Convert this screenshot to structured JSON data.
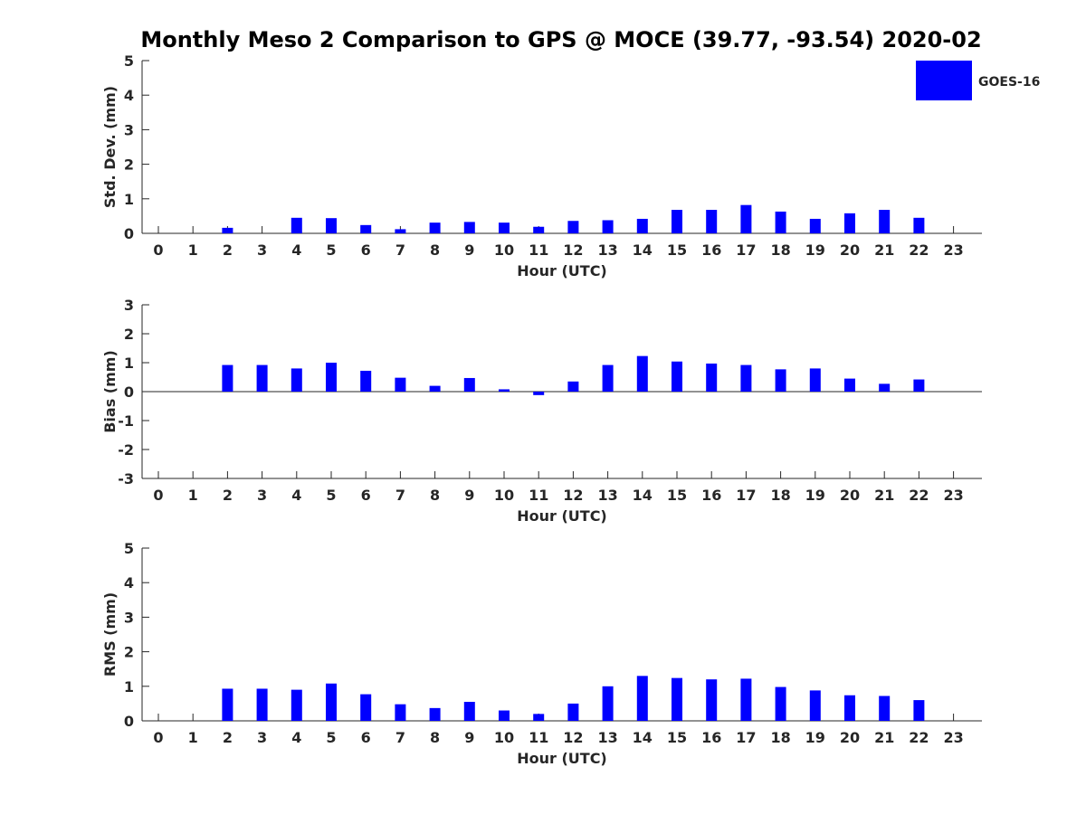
{
  "title": "Monthly Meso 2 Comparison to GPS @ MOCE (39.77, -93.54) 2020-02",
  "legend": {
    "label": "GOES-16",
    "color": "#0000ff"
  },
  "chart_data": [
    {
      "type": "bar",
      "name": "std",
      "ylabel": "Std. Dev. (mm)",
      "xlabel": "Hour (UTC)",
      "ylim": [
        0,
        5
      ],
      "yticks": [
        0,
        1,
        2,
        3,
        4,
        5
      ],
      "categories": [
        "0",
        "1",
        "2",
        "3",
        "4",
        "5",
        "6",
        "7",
        "8",
        "9",
        "10",
        "11",
        "12",
        "13",
        "14",
        "15",
        "16",
        "17",
        "18",
        "19",
        "20",
        "21",
        "22",
        "23"
      ],
      "values": [
        null,
        null,
        0.16,
        null,
        0.45,
        0.44,
        0.24,
        0.12,
        0.31,
        0.33,
        0.31,
        0.19,
        0.36,
        0.38,
        0.42,
        0.68,
        0.68,
        0.82,
        0.63,
        0.42,
        0.58,
        0.68,
        0.45,
        null
      ],
      "color": "#0000ff"
    },
    {
      "type": "bar",
      "name": "bias",
      "ylabel": "Bias (mm)",
      "xlabel": "Hour (UTC)",
      "ylim": [
        -3,
        3
      ],
      "yticks": [
        -3,
        -2,
        -1,
        0,
        1,
        2,
        3
      ],
      "categories": [
        "0",
        "1",
        "2",
        "3",
        "4",
        "5",
        "6",
        "7",
        "8",
        "9",
        "10",
        "11",
        "12",
        "13",
        "14",
        "15",
        "16",
        "17",
        "18",
        "19",
        "20",
        "21",
        "22",
        "23"
      ],
      "values": [
        null,
        null,
        0.92,
        0.92,
        0.8,
        1.0,
        0.72,
        0.48,
        0.2,
        0.47,
        0.08,
        -0.12,
        0.35,
        0.92,
        1.23,
        1.04,
        0.97,
        0.92,
        0.77,
        0.8,
        0.45,
        0.27,
        0.42,
        null
      ],
      "color": "#0000ff"
    },
    {
      "type": "bar",
      "name": "rms",
      "ylabel": "RMS (mm)",
      "xlabel": "Hour (UTC)",
      "ylim": [
        0,
        5
      ],
      "yticks": [
        0,
        1,
        2,
        3,
        4,
        5
      ],
      "categories": [
        "0",
        "1",
        "2",
        "3",
        "4",
        "5",
        "6",
        "7",
        "8",
        "9",
        "10",
        "11",
        "12",
        "13",
        "14",
        "15",
        "16",
        "17",
        "18",
        "19",
        "20",
        "21",
        "22",
        "23"
      ],
      "values": [
        null,
        null,
        0.93,
        0.93,
        0.9,
        1.08,
        0.77,
        0.48,
        0.37,
        0.55,
        0.3,
        0.2,
        0.5,
        1.0,
        1.3,
        1.24,
        1.2,
        1.22,
        0.98,
        0.88,
        0.74,
        0.72,
        0.6,
        null
      ],
      "color": "#0000ff"
    }
  ]
}
